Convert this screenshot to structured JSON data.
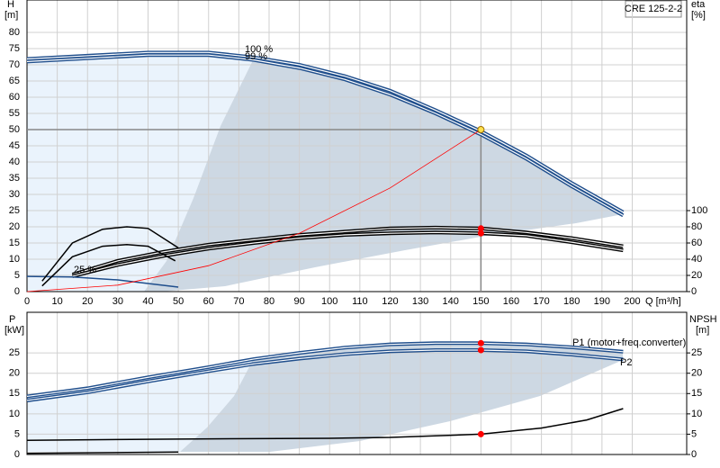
{
  "chart_data": [
    {
      "type": "line",
      "title": "CRE 125-2-2",
      "x_label": "Q [m³/h]",
      "y_label": "H",
      "y_unit": "[m]",
      "y2_label": "eta",
      "y2_unit": "[%]",
      "xlim": [
        0,
        218
      ],
      "xticks": [
        0,
        10,
        20,
        30,
        40,
        50,
        60,
        70,
        80,
        90,
        100,
        110,
        120,
        130,
        140,
        150,
        160,
        170,
        180,
        190,
        200
      ],
      "ylim": [
        0,
        90
      ],
      "yticks": [
        0,
        5,
        10,
        15,
        20,
        25,
        30,
        35,
        40,
        45,
        50,
        55,
        60,
        65,
        70,
        75,
        80
      ],
      "y2lim": [
        0,
        360
      ],
      "y2ticks": [
        0,
        20,
        40,
        60,
        80,
        100
      ],
      "grid": true,
      "highlight_x": 150,
      "duty_point": {
        "x": 150,
        "y": 50
      },
      "series": [
        {
          "name": "100 %",
          "color": "#1f4e8c",
          "style": "double",
          "x": [
            0,
            20,
            40,
            60,
            75,
            90,
            105,
            120,
            135,
            150,
            165,
            180,
            197
          ],
          "values": [
            71.8,
            72.8,
            73.8,
            73.8,
            72.3,
            70,
            66.5,
            62,
            56,
            49.5,
            42,
            33.5,
            24.5
          ]
        },
        {
          "name": "99 %",
          "color": "#1f4e8c",
          "style": "double",
          "x": [
            0,
            20,
            40,
            60,
            75,
            90,
            105,
            120,
            135,
            150,
            165,
            180,
            197
          ],
          "values": [
            71,
            72,
            73,
            73,
            71.5,
            69,
            65.5,
            60.8,
            55,
            48.5,
            41,
            32.5,
            23.5
          ]
        },
        {
          "color": "#000000",
          "style": "double",
          "axis": "y2",
          "highlight": true,
          "x": [
            15,
            30,
            45,
            60,
            75,
            90,
            105,
            120,
            135,
            150,
            165,
            180,
            197
          ],
          "values": [
            21,
            38,
            49,
            58,
            64,
            70,
            74,
            78,
            79,
            78,
            73,
            66,
            56
          ]
        },
        {
          "color": "#000000",
          "style": "double",
          "axis": "y2",
          "highlight": true,
          "x": [
            15,
            30,
            45,
            60,
            75,
            90,
            105,
            120,
            135,
            150,
            165,
            180,
            197
          ],
          "values": [
            19,
            33,
            44,
            53,
            60,
            66,
            70,
            72,
            73,
            72,
            69,
            61,
            51
          ]
        },
        {
          "name": "25 %",
          "color": "#1f4e8c",
          "style": "single",
          "x": [
            0,
            15,
            30,
            50
          ],
          "values": [
            4.7,
            4.5,
            3.6,
            1.4
          ]
        },
        {
          "color": "#000000",
          "style": "single",
          "axis": "y2",
          "x": [
            5,
            15,
            25,
            33,
            40,
            50
          ],
          "values": [
            13,
            60,
            77,
            80,
            78,
            54
          ]
        },
        {
          "color": "#000000",
          "style": "single",
          "axis": "y2",
          "x": [
            5,
            15,
            25,
            33,
            40,
            49
          ],
          "values": [
            7,
            43,
            56,
            58,
            56,
            38
          ]
        },
        {
          "color": "#ff0000",
          "style": "single",
          "x": [
            0,
            30,
            60,
            90,
            120,
            150
          ],
          "values": [
            0,
            2,
            8,
            18,
            32,
            50
          ]
        }
      ]
    },
    {
      "type": "line",
      "y_label": "P",
      "y_unit": "[kW]",
      "y2_label": "NPSH",
      "y2_unit": "[m]",
      "xlim": [
        0,
        218
      ],
      "ylim": [
        0,
        35
      ],
      "yticks": [
        0,
        5,
        10,
        15,
        20,
        25
      ],
      "y2lim": [
        0,
        35
      ],
      "y2ticks": [
        0,
        5,
        10,
        15,
        20,
        25
      ],
      "grid": true,
      "highlight_x": 150,
      "series": [
        {
          "name": "P1 (motor+freq.converter)",
          "color": "#1f4e8c",
          "style": "double",
          "highlight": true,
          "x": [
            0,
            20,
            40,
            60,
            75,
            90,
            105,
            120,
            135,
            150,
            165,
            180,
            197
          ],
          "values": [
            14.3,
            16.3,
            19,
            21.5,
            23.5,
            25,
            26.3,
            27.1,
            27.4,
            27.4,
            27.1,
            26.4,
            25.3
          ]
        },
        {
          "name": "P2",
          "color": "#1f4e8c",
          "style": "double",
          "highlight": true,
          "x": [
            0,
            20,
            40,
            60,
            75,
            90,
            105,
            120,
            135,
            150,
            165,
            180,
            197
          ],
          "values": [
            13.3,
            15.3,
            18,
            20.5,
            22.3,
            23.6,
            24.7,
            25.4,
            25.7,
            25.7,
            25.4,
            24.6,
            23.4
          ]
        },
        {
          "color": "#000000",
          "style": "single",
          "axis": "y2",
          "highlight": true,
          "x": [
            0,
            50,
            100,
            120,
            150,
            170,
            185,
            197
          ],
          "values": [
            3.5,
            3.8,
            4,
            4.2,
            5,
            6.5,
            8.5,
            11.3
          ]
        },
        {
          "color": "#000000",
          "style": "single",
          "axis": "y2",
          "x": [
            0,
            50
          ],
          "values": [
            0.3,
            0.6
          ]
        }
      ]
    }
  ]
}
